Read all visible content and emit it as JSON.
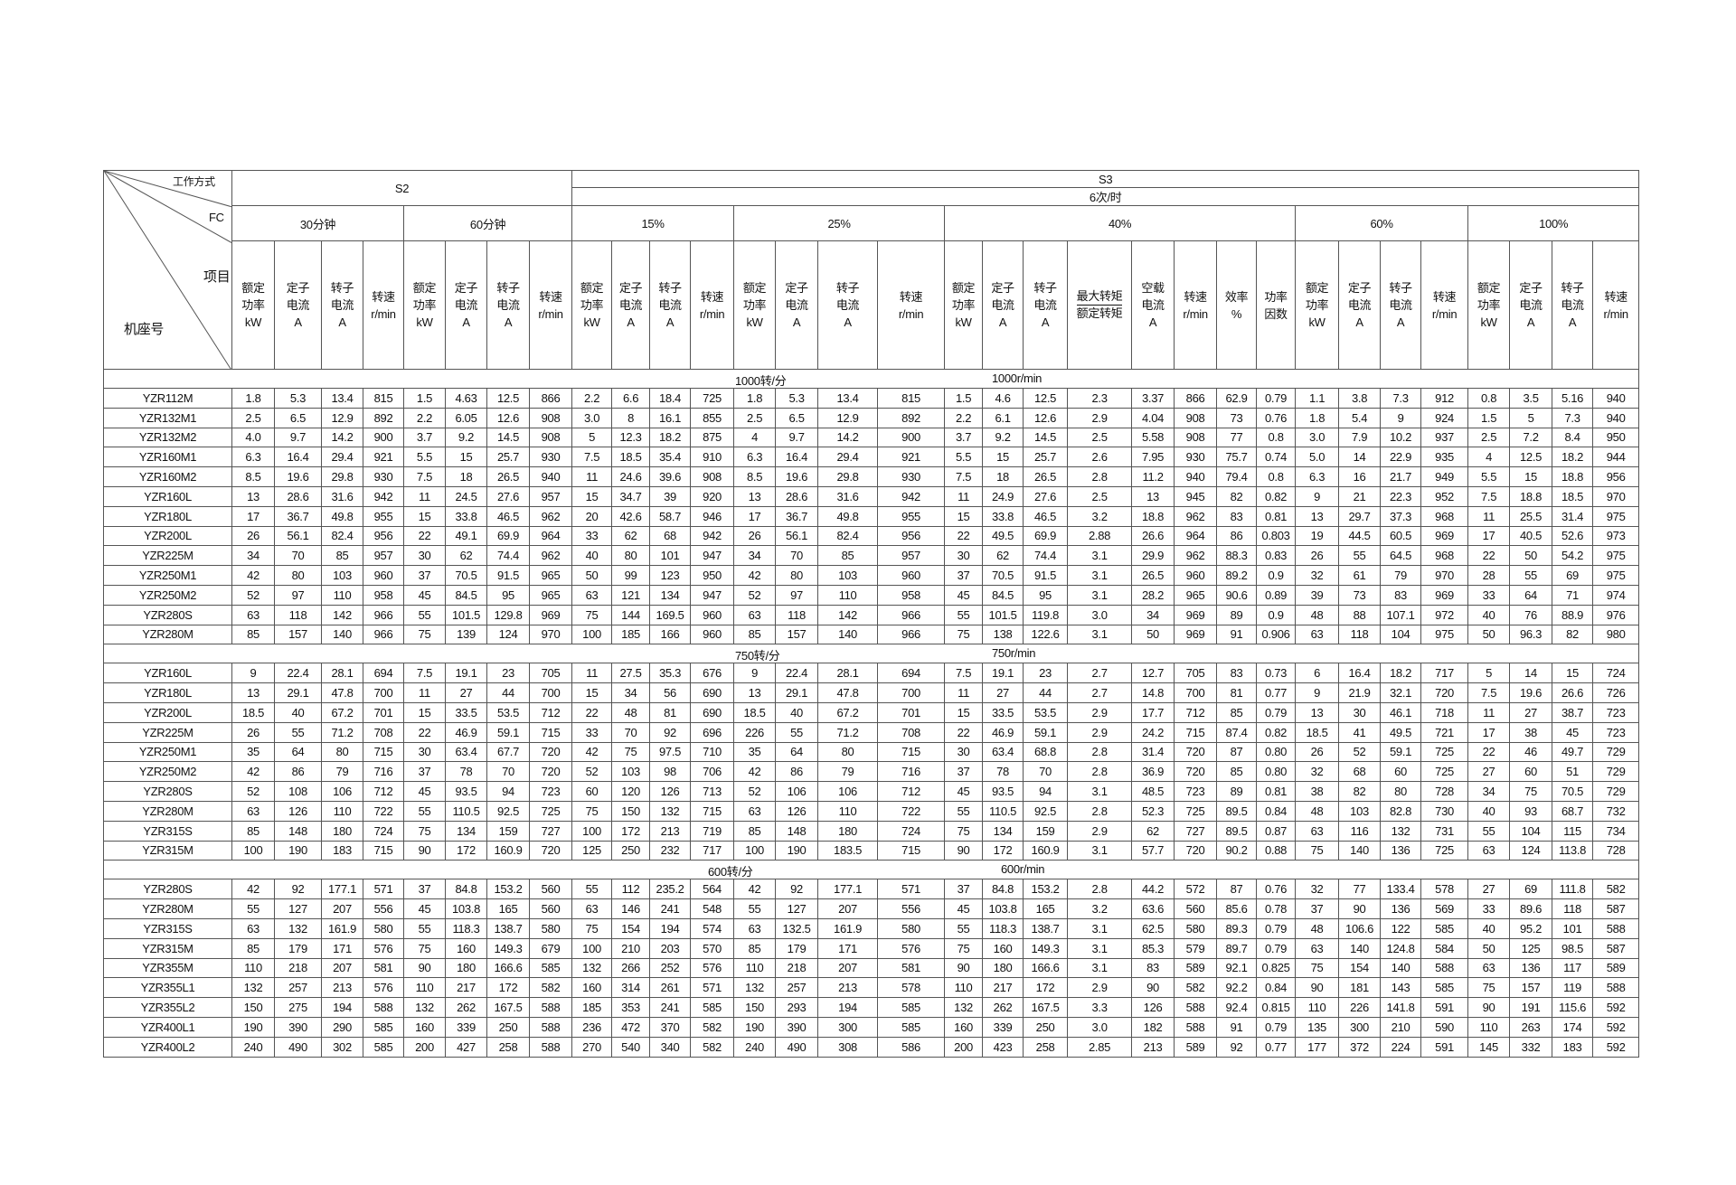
{
  "corner": {
    "work_mode": "工作方式",
    "fc": "FC",
    "item": "项目",
    "frame": "机座号"
  },
  "modes": {
    "s2": "S2",
    "s3": "S3",
    "s3_freq": "6次/时"
  },
  "groups": [
    "30分钟",
    "60分钟",
    "15%",
    "25%",
    "40%",
    "60%",
    "100%"
  ],
  "col_headers": {
    "power": "额定\n功率\nkW",
    "stator": "定子\n电流\nA",
    "rotor": "转子\n电流\nA",
    "speed": "转速\nr/min",
    "torque_num": "最大转矩",
    "torque_den": "额定转矩",
    "noload": "空载\n电流\nA",
    "eff": "效率\n%",
    "pf": "功率\n因数"
  },
  "sections": [
    {
      "label_cn": "1000转/分",
      "label_en": "1000r/min",
      "rows": [
        [
          "YZR112M",
          "1.8",
          "5.3",
          "13.4",
          "815",
          "1.5",
          "4.63",
          "12.5",
          "866",
          "2.2",
          "6.6",
          "18.4",
          "725",
          "1.8",
          "5.3",
          "13.4",
          "815",
          "1.5",
          "4.6",
          "12.5",
          "2.3",
          "3.37",
          "866",
          "62.9",
          "0.79",
          "1.1",
          "3.8",
          "7.3",
          "912",
          "0.8",
          "3.5",
          "5.16",
          "940"
        ],
        [
          "YZR132M1",
          "2.5",
          "6.5",
          "12.9",
          "892",
          "2.2",
          "6.05",
          "12.6",
          "908",
          "3.0",
          "8",
          "16.1",
          "855",
          "2.5",
          "6.5",
          "12.9",
          "892",
          "2.2",
          "6.1",
          "12.6",
          "2.9",
          "4.04",
          "908",
          "73",
          "0.76",
          "1.8",
          "5.4",
          "9",
          "924",
          "1.5",
          "5",
          "7.3",
          "940"
        ],
        [
          "YZR132M2",
          "4.0",
          "9.7",
          "14.2",
          "900",
          "3.7",
          "9.2",
          "14.5",
          "908",
          "5",
          "12.3",
          "18.2",
          "875",
          "4",
          "9.7",
          "14.2",
          "900",
          "3.7",
          "9.2",
          "14.5",
          "2.5",
          "5.58",
          "908",
          "77",
          "0.8",
          "3.0",
          "7.9",
          "10.2",
          "937",
          "2.5",
          "7.2",
          "8.4",
          "950"
        ],
        [
          "YZR160M1",
          "6.3",
          "16.4",
          "29.4",
          "921",
          "5.5",
          "15",
          "25.7",
          "930",
          "7.5",
          "18.5",
          "35.4",
          "910",
          "6.3",
          "16.4",
          "29.4",
          "921",
          "5.5",
          "15",
          "25.7",
          "2.6",
          "7.95",
          "930",
          "75.7",
          "0.74",
          "5.0",
          "14",
          "22.9",
          "935",
          "4",
          "12.5",
          "18.2",
          "944"
        ],
        [
          "YZR160M2",
          "8.5",
          "19.6",
          "29.8",
          "930",
          "7.5",
          "18",
          "26.5",
          "940",
          "11",
          "24.6",
          "39.6",
          "908",
          "8.5",
          "19.6",
          "29.8",
          "930",
          "7.5",
          "18",
          "26.5",
          "2.8",
          "11.2",
          "940",
          "79.4",
          "0.8",
          "6.3",
          "16",
          "21.7",
          "949",
          "5.5",
          "15",
          "18.8",
          "956"
        ],
        [
          "YZR160L",
          "13",
          "28.6",
          "31.6",
          "942",
          "11",
          "24.5",
          "27.6",
          "957",
          "15",
          "34.7",
          "39",
          "920",
          "13",
          "28.6",
          "31.6",
          "942",
          "11",
          "24.9",
          "27.6",
          "2.5",
          "13",
          "945",
          "82",
          "0.82",
          "9",
          "21",
          "22.3",
          "952",
          "7.5",
          "18.8",
          "18.5",
          "970"
        ],
        [
          "YZR180L",
          "17",
          "36.7",
          "49.8",
          "955",
          "15",
          "33.8",
          "46.5",
          "962",
          "20",
          "42.6",
          "58.7",
          "946",
          "17",
          "36.7",
          "49.8",
          "955",
          "15",
          "33.8",
          "46.5",
          "3.2",
          "18.8",
          "962",
          "83",
          "0.81",
          "13",
          "29.7",
          "37.3",
          "968",
          "11",
          "25.5",
          "31.4",
          "975"
        ],
        [
          "YZR200L",
          "26",
          "56.1",
          "82.4",
          "956",
          "22",
          "49.1",
          "69.9",
          "964",
          "33",
          "62",
          "68",
          "942",
          "26",
          "56.1",
          "82.4",
          "956",
          "22",
          "49.5",
          "69.9",
          "2.88",
          "26.6",
          "964",
          "86",
          "0.803",
          "19",
          "44.5",
          "60.5",
          "969",
          "17",
          "40.5",
          "52.6",
          "973"
        ],
        [
          "YZR225M",
          "34",
          "70",
          "85",
          "957",
          "30",
          "62",
          "74.4",
          "962",
          "40",
          "80",
          "101",
          "947",
          "34",
          "70",
          "85",
          "957",
          "30",
          "62",
          "74.4",
          "3.1",
          "29.9",
          "962",
          "88.3",
          "0.83",
          "26",
          "55",
          "64.5",
          "968",
          "22",
          "50",
          "54.2",
          "975"
        ],
        [
          "YZR250M1",
          "42",
          "80",
          "103",
          "960",
          "37",
          "70.5",
          "91.5",
          "965",
          "50",
          "99",
          "123",
          "950",
          "42",
          "80",
          "103",
          "960",
          "37",
          "70.5",
          "91.5",
          "3.1",
          "26.5",
          "960",
          "89.2",
          "0.9",
          "32",
          "61",
          "79",
          "970",
          "28",
          "55",
          "69",
          "975"
        ],
        [
          "YZR250M2",
          "52",
          "97",
          "110",
          "958",
          "45",
          "84.5",
          "95",
          "965",
          "63",
          "121",
          "134",
          "947",
          "52",
          "97",
          "110",
          "958",
          "45",
          "84.5",
          "95",
          "3.1",
          "28.2",
          "965",
          "90.6",
          "0.89",
          "39",
          "73",
          "83",
          "969",
          "33",
          "64",
          "71",
          "974"
        ],
        [
          "YZR280S",
          "63",
          "118",
          "142",
          "966",
          "55",
          "101.5",
          "129.8",
          "969",
          "75",
          "144",
          "169.5",
          "960",
          "63",
          "118",
          "142",
          "966",
          "55",
          "101.5",
          "119.8",
          "3.0",
          "34",
          "969",
          "89",
          "0.9",
          "48",
          "88",
          "107.1",
          "972",
          "40",
          "76",
          "88.9",
          "976"
        ],
        [
          "YZR280M",
          "85",
          "157",
          "140",
          "966",
          "75",
          "139",
          "124",
          "970",
          "100",
          "185",
          "166",
          "960",
          "85",
          "157",
          "140",
          "966",
          "75",
          "138",
          "122.6",
          "3.1",
          "50",
          "969",
          "91",
          "0.906",
          "63",
          "118",
          "104",
          "975",
          "50",
          "96.3",
          "82",
          "980"
        ]
      ]
    },
    {
      "label_cn": "750转/分",
      "label_en": "750r/min",
      "rows": [
        [
          "YZR160L",
          "9",
          "22.4",
          "28.1",
          "694",
          "7.5",
          "19.1",
          "23",
          "705",
          "11",
          "27.5",
          "35.3",
          "676",
          "9",
          "22.4",
          "28.1",
          "694",
          "7.5",
          "19.1",
          "23",
          "2.7",
          "12.7",
          "705",
          "83",
          "0.73",
          "6",
          "16.4",
          "18.2",
          "717",
          "5",
          "14",
          "15",
          "724"
        ],
        [
          "YZR180L",
          "13",
          "29.1",
          "47.8",
          "700",
          "11",
          "27",
          "44",
          "700",
          "15",
          "34",
          "56",
          "690",
          "13",
          "29.1",
          "47.8",
          "700",
          "11",
          "27",
          "44",
          "2.7",
          "14.8",
          "700",
          "81",
          "0.77",
          "9",
          "21.9",
          "32.1",
          "720",
          "7.5",
          "19.6",
          "26.6",
          "726"
        ],
        [
          "YZR200L",
          "18.5",
          "40",
          "67.2",
          "701",
          "15",
          "33.5",
          "53.5",
          "712",
          "22",
          "48",
          "81",
          "690",
          "18.5",
          "40",
          "67.2",
          "701",
          "15",
          "33.5",
          "53.5",
          "2.9",
          "17.7",
          "712",
          "85",
          "0.79",
          "13",
          "30",
          "46.1",
          "718",
          "11",
          "27",
          "38.7",
          "723"
        ],
        [
          "YZR225M",
          "26",
          "55",
          "71.2",
          "708",
          "22",
          "46.9",
          "59.1",
          "715",
          "33",
          "70",
          "92",
          "696",
          "226",
          "55",
          "71.2",
          "708",
          "22",
          "46.9",
          "59.1",
          "2.9",
          "24.2",
          "715",
          "87.4",
          "0.82",
          "18.5",
          "41",
          "49.5",
          "721",
          "17",
          "38",
          "45",
          "723"
        ],
        [
          "YZR250M1",
          "35",
          "64",
          "80",
          "715",
          "30",
          "63.4",
          "67.7",
          "720",
          "42",
          "75",
          "97.5",
          "710",
          "35",
          "64",
          "80",
          "715",
          "30",
          "63.4",
          "68.8",
          "2.8",
          "31.4",
          "720",
          "87",
          "0.80",
          "26",
          "52",
          "59.1",
          "725",
          "22",
          "46",
          "49.7",
          "729"
        ],
        [
          "YZR250M2",
          "42",
          "86",
          "79",
          "716",
          "37",
          "78",
          "70",
          "720",
          "52",
          "103",
          "98",
          "706",
          "42",
          "86",
          "79",
          "716",
          "37",
          "78",
          "70",
          "2.8",
          "36.9",
          "720",
          "85",
          "0.80",
          "32",
          "68",
          "60",
          "725",
          "27",
          "60",
          "51",
          "729"
        ],
        [
          "YZR280S",
          "52",
          "108",
          "106",
          "712",
          "45",
          "93.5",
          "94",
          "723",
          "60",
          "120",
          "126",
          "713",
          "52",
          "106",
          "106",
          "712",
          "45",
          "93.5",
          "94",
          "3.1",
          "48.5",
          "723",
          "89",
          "0.81",
          "38",
          "82",
          "80",
          "728",
          "34",
          "75",
          "70.5",
          "729"
        ],
        [
          "YZR280M",
          "63",
          "126",
          "110",
          "722",
          "55",
          "110.5",
          "92.5",
          "725",
          "75",
          "150",
          "132",
          "715",
          "63",
          "126",
          "110",
          "722",
          "55",
          "110.5",
          "92.5",
          "2.8",
          "52.3",
          "725",
          "89.5",
          "0.84",
          "48",
          "103",
          "82.8",
          "730",
          "40",
          "93",
          "68.7",
          "732"
        ],
        [
          "YZR315S",
          "85",
          "148",
          "180",
          "724",
          "75",
          "134",
          "159",
          "727",
          "100",
          "172",
          "213",
          "719",
          "85",
          "148",
          "180",
          "724",
          "75",
          "134",
          "159",
          "2.9",
          "62",
          "727",
          "89.5",
          "0.87",
          "63",
          "116",
          "132",
          "731",
          "55",
          "104",
          "115",
          "734"
        ],
        [
          "YZR315M",
          "100",
          "190",
          "183",
          "715",
          "90",
          "172",
          "160.9",
          "720",
          "125",
          "250",
          "232",
          "717",
          "100",
          "190",
          "183.5",
          "715",
          "90",
          "172",
          "160.9",
          "3.1",
          "57.7",
          "720",
          "90.2",
          "0.88",
          "75",
          "140",
          "136",
          "725",
          "63",
          "124",
          "113.8",
          "728"
        ]
      ]
    },
    {
      "label_cn": "600转/分",
      "label_en": "600r/min",
      "rows": [
        [
          "YZR280S",
          "42",
          "92",
          "177.1",
          "571",
          "37",
          "84.8",
          "153.2",
          "560",
          "55",
          "112",
          "235.2",
          "564",
          "42",
          "92",
          "177.1",
          "571",
          "37",
          "84.8",
          "153.2",
          "2.8",
          "44.2",
          "572",
          "87",
          "0.76",
          "32",
          "77",
          "133.4",
          "578",
          "27",
          "69",
          "111.8",
          "582"
        ],
        [
          "YZR280M",
          "55",
          "127",
          "207",
          "556",
          "45",
          "103.8",
          "165",
          "560",
          "63",
          "146",
          "241",
          "548",
          "55",
          "127",
          "207",
          "556",
          "45",
          "103.8",
          "165",
          "3.2",
          "63.6",
          "560",
          "85.6",
          "0.78",
          "37",
          "90",
          "136",
          "569",
          "33",
          "89.6",
          "118",
          "587"
        ],
        [
          "YZR315S",
          "63",
          "132",
          "161.9",
          "580",
          "55",
          "118.3",
          "138.7",
          "580",
          "75",
          "154",
          "194",
          "574",
          "63",
          "132.5",
          "161.9",
          "580",
          "55",
          "118.3",
          "138.7",
          "3.1",
          "62.5",
          "580",
          "89.3",
          "0.79",
          "48",
          "106.6",
          "122",
          "585",
          "40",
          "95.2",
          "101",
          "588"
        ],
        [
          "YZR315M",
          "85",
          "179",
          "171",
          "576",
          "75",
          "160",
          "149.3",
          "679",
          "100",
          "210",
          "203",
          "570",
          "85",
          "179",
          "171",
          "576",
          "75",
          "160",
          "149.3",
          "3.1",
          "85.3",
          "579",
          "89.7",
          "0.79",
          "63",
          "140",
          "124.8",
          "584",
          "50",
          "125",
          "98.5",
          "587"
        ],
        [
          "YZR355M",
          "110",
          "218",
          "207",
          "581",
          "90",
          "180",
          "166.6",
          "585",
          "132",
          "266",
          "252",
          "576",
          "110",
          "218",
          "207",
          "581",
          "90",
          "180",
          "166.6",
          "3.1",
          "83",
          "589",
          "92.1",
          "0.825",
          "75",
          "154",
          "140",
          "588",
          "63",
          "136",
          "117",
          "589"
        ],
        [
          "YZR355L1",
          "132",
          "257",
          "213",
          "576",
          "110",
          "217",
          "172",
          "582",
          "160",
          "314",
          "261",
          "571",
          "132",
          "257",
          "213",
          "578",
          "110",
          "217",
          "172",
          "2.9",
          "90",
          "582",
          "92.2",
          "0.84",
          "90",
          "181",
          "143",
          "585",
          "75",
          "157",
          "119",
          "588"
        ],
        [
          "YZR355L2",
          "150",
          "275",
          "194",
          "588",
          "132",
          "262",
          "167.5",
          "588",
          "185",
          "353",
          "241",
          "585",
          "150",
          "293",
          "194",
          "585",
          "132",
          "262",
          "167.5",
          "3.3",
          "126",
          "588",
          "92.4",
          "0.815",
          "110",
          "226",
          "141.8",
          "591",
          "90",
          "191",
          "115.6",
          "592"
        ],
        [
          "YZR400L1",
          "190",
          "390",
          "290",
          "585",
          "160",
          "339",
          "250",
          "588",
          "236",
          "472",
          "370",
          "582",
          "190",
          "390",
          "300",
          "585",
          "160",
          "339",
          "250",
          "3.0",
          "182",
          "588",
          "91",
          "0.79",
          "135",
          "300",
          "210",
          "590",
          "110",
          "263",
          "174",
          "592"
        ],
        [
          "YZR400L2",
          "240",
          "490",
          "302",
          "585",
          "200",
          "427",
          "258",
          "588",
          "270",
          "540",
          "340",
          "582",
          "240",
          "490",
          "308",
          "586",
          "200",
          "423",
          "258",
          "2.85",
          "213",
          "589",
          "92",
          "0.77",
          "177",
          "372",
          "224",
          "591",
          "145",
          "332",
          "183",
          "592"
        ]
      ]
    }
  ]
}
